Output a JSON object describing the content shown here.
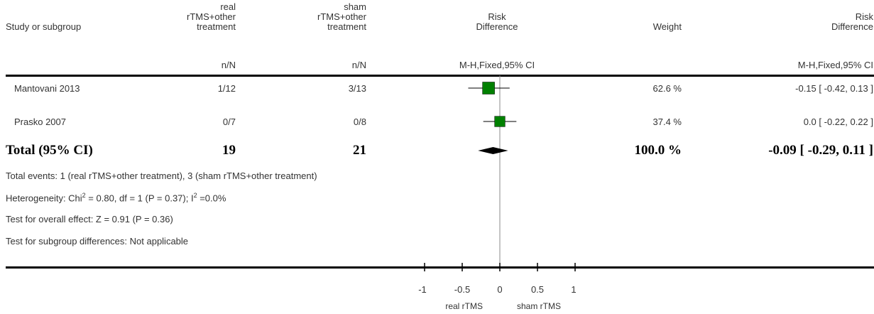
{
  "header": {
    "study": "Study or subgroup",
    "group1": [
      "real",
      "rTMS+other",
      "treatment"
    ],
    "group2": [
      "sham",
      "rTMS+other",
      "treatment"
    ],
    "effect": [
      "Risk",
      "Difference"
    ],
    "weight": "Weight",
    "effect2": [
      "Risk",
      "Difference"
    ],
    "nN1": "n/N",
    "nN2": "n/N",
    "method": "M-H,Fixed,95% CI",
    "method2": "M-H,Fixed,95% CI"
  },
  "studies": [
    {
      "name": "Mantovani 2013",
      "g1": "1/12",
      "g2": "3/13",
      "weight": "62.6 %",
      "ci": "-0.15 [ -0.42, 0.13 ]"
    },
    {
      "name": "Prasko 2007",
      "g1": "0/7",
      "g2": "0/8",
      "weight": "37.4 %",
      "ci": "0.0 [ -0.22, 0.22 ]"
    }
  ],
  "total": {
    "label": "Total (95% CI)",
    "g1": "19",
    "g2": "21",
    "weight": "100.0 %",
    "ci": "-0.09 [ -0.29, 0.11 ]"
  },
  "footer": {
    "events": "Total events: 1 (real rTMS+other treatment), 3 (sham rTMS+other treatment)",
    "heterogeneity_a": "Heterogeneity: Chi",
    "heterogeneity_b": " = 0.80, df = 1 (P = 0.37); I",
    "heterogeneity_c": " =0.0%",
    "sup": "2",
    "overall": "Test for overall effect: Z = 0.91 (P = 0.36)",
    "subgroup": "Test for subgroup differences: Not applicable"
  },
  "axis": {
    "ticks": [
      "-1",
      "-0.5",
      "0",
      "0.5",
      "1"
    ],
    "left_label": "real rTMS",
    "right_label": "sham rTMS"
  },
  "chart_data": {
    "type": "forest",
    "xlim": [
      -1,
      1
    ],
    "xticks": [
      -1,
      -0.5,
      0,
      0.5,
      1
    ],
    "studies": [
      {
        "name": "Mantovani 2013",
        "estimate": -0.15,
        "lower": -0.42,
        "upper": 0.13,
        "weight": 62.6
      },
      {
        "name": "Prasko 2007",
        "estimate": 0.0,
        "lower": -0.22,
        "upper": 0.22,
        "weight": 37.4
      }
    ],
    "total": {
      "estimate": -0.09,
      "lower": -0.29,
      "upper": 0.11
    },
    "colors": {
      "square": "#008000",
      "diamond": "#000000"
    }
  }
}
